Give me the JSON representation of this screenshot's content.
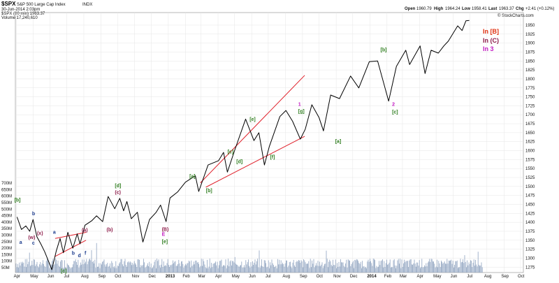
{
  "header": {
    "symbol": "$SPX",
    "name": "S&P 500 Large Cap Index",
    "exchange": "INDX",
    "date": "30-Jun-2014 2:03pm",
    "legend_price": "$SPX (60 min) 1963.37",
    "legend_volume": "Volume 17,240,610",
    "open_label": "Open",
    "open": "1960.79",
    "high_label": "High",
    "high": "1964.24",
    "low_label": "Low",
    "low": "1958.41",
    "last_label": "Last",
    "last": "1963.37",
    "chg_label": "Chg",
    "chg": "+2.41 (+0.12%)",
    "credit": "© StockCharts.com"
  },
  "labels_right": {
    "b_label": "In [B]",
    "b_color": "#e03010",
    "c_label": "In (C)",
    "c_color": "#8e1c4a",
    "three_label": "In 3",
    "three_color": "#c21cc2"
  },
  "chart_data": {
    "type": "line",
    "title": "$SPX (60 min) 1963.37",
    "ylim": [
      1260,
      1985
    ],
    "y_ticks": [
      1275,
      1300,
      1325,
      1350,
      1375,
      1400,
      1425,
      1450,
      1475,
      1500,
      1525,
      1550,
      1575,
      1600,
      1625,
      1650,
      1675,
      1700,
      1725,
      1750,
      1775,
      1800,
      1825,
      1850,
      1875,
      1900,
      1925,
      1950
    ],
    "x_ticks": [
      "Apr",
      "May",
      "Jun",
      "Jul",
      "Aug",
      "Sep",
      "Oct",
      "Nov",
      "Dec",
      "2013",
      "Feb",
      "Mar",
      "Apr",
      "May",
      "Jun",
      "Jul",
      "Aug",
      "Sep",
      "Oct",
      "Nov",
      "Dec",
      "2014",
      "Feb",
      "Mar",
      "Apr",
      "May",
      "Jun",
      "Jul",
      "Aug",
      "Sep",
      "Oct"
    ],
    "volume_ticks": [
      "50M",
      "100M",
      "150M",
      "200M",
      "250M",
      "300M",
      "350M",
      "400M",
      "450M",
      "500M",
      "550M",
      "600M",
      "650M",
      "700M"
    ],
    "series": [
      {
        "values": [
          {
            "x": "2012-04-02",
            "y": 1415
          },
          {
            "x": "2012-04-10",
            "y": 1380
          },
          {
            "x": "2012-04-18",
            "y": 1390
          },
          {
            "x": "2012-04-25",
            "y": 1375
          },
          {
            "x": "2012-05-01",
            "y": 1408
          },
          {
            "x": "2012-05-08",
            "y": 1360
          },
          {
            "x": "2012-05-15",
            "y": 1340
          },
          {
            "x": "2012-05-22",
            "y": 1318
          },
          {
            "x": "2012-06-01",
            "y": 1280
          },
          {
            "x": "2012-06-04",
            "y": 1268
          },
          {
            "x": "2012-06-12",
            "y": 1320
          },
          {
            "x": "2012-06-19",
            "y": 1355
          },
          {
            "x": "2012-06-25",
            "y": 1315
          },
          {
            "x": "2012-07-03",
            "y": 1372
          },
          {
            "x": "2012-07-12",
            "y": 1328
          },
          {
            "x": "2012-07-20",
            "y": 1368
          },
          {
            "x": "2012-07-25",
            "y": 1340
          },
          {
            "x": "2012-08-03",
            "y": 1392
          },
          {
            "x": "2012-08-15",
            "y": 1404
          },
          {
            "x": "2012-08-24",
            "y": 1418
          },
          {
            "x": "2012-09-04",
            "y": 1402
          },
          {
            "x": "2012-09-14",
            "y": 1472
          },
          {
            "x": "2012-09-26",
            "y": 1438
          },
          {
            "x": "2012-10-05",
            "y": 1467
          },
          {
            "x": "2012-10-12",
            "y": 1432
          },
          {
            "x": "2012-10-18",
            "y": 1458
          },
          {
            "x": "2012-10-26",
            "y": 1410
          },
          {
            "x": "2012-11-06",
            "y": 1428
          },
          {
            "x": "2012-11-16",
            "y": 1345
          },
          {
            "x": "2012-11-28",
            "y": 1408
          },
          {
            "x": "2012-12-10",
            "y": 1428
          },
          {
            "x": "2012-12-18",
            "y": 1448
          },
          {
            "x": "2012-12-28",
            "y": 1402
          },
          {
            "x": "2013-01-04",
            "y": 1468
          },
          {
            "x": "2013-01-18",
            "y": 1485
          },
          {
            "x": "2013-02-01",
            "y": 1512
          },
          {
            "x": "2013-02-19",
            "y": 1530
          },
          {
            "x": "2013-02-25",
            "y": 1486
          },
          {
            "x": "2013-03-14",
            "y": 1560
          },
          {
            "x": "2013-04-02",
            "y": 1572
          },
          {
            "x": "2013-04-11",
            "y": 1595
          },
          {
            "x": "2013-04-18",
            "y": 1540
          },
          {
            "x": "2013-05-01",
            "y": 1600
          },
          {
            "x": "2013-05-21",
            "y": 1688
          },
          {
            "x": "2013-06-05",
            "y": 1628
          },
          {
            "x": "2013-06-14",
            "y": 1650
          },
          {
            "x": "2013-06-24",
            "y": 1560
          },
          {
            "x": "2013-07-03",
            "y": 1612
          },
          {
            "x": "2013-07-22",
            "y": 1695
          },
          {
            "x": "2013-08-02",
            "y": 1712
          },
          {
            "x": "2013-08-14",
            "y": 1682
          },
          {
            "x": "2013-08-28",
            "y": 1632
          },
          {
            "x": "2013-09-06",
            "y": 1660
          },
          {
            "x": "2013-09-18",
            "y": 1728
          },
          {
            "x": "2013-10-01",
            "y": 1692
          },
          {
            "x": "2013-10-09",
            "y": 1655
          },
          {
            "x": "2013-10-22",
            "y": 1755
          },
          {
            "x": "2013-11-07",
            "y": 1745
          },
          {
            "x": "2013-11-27",
            "y": 1808
          },
          {
            "x": "2013-12-12",
            "y": 1775
          },
          {
            "x": "2013-12-31",
            "y": 1848
          },
          {
            "x": "2014-01-15",
            "y": 1850
          },
          {
            "x": "2014-02-04",
            "y": 1738
          },
          {
            "x": "2014-02-18",
            "y": 1835
          },
          {
            "x": "2014-03-07",
            "y": 1880
          },
          {
            "x": "2014-03-14",
            "y": 1840
          },
          {
            "x": "2014-04-02",
            "y": 1892
          },
          {
            "x": "2014-04-11",
            "y": 1815
          },
          {
            "x": "2014-04-22",
            "y": 1880
          },
          {
            "x": "2014-05-05",
            "y": 1872
          },
          {
            "x": "2014-05-15",
            "y": 1892
          },
          {
            "x": "2014-05-23",
            "y": 1905
          },
          {
            "x": "2014-06-09",
            "y": 1948
          },
          {
            "x": "2014-06-17",
            "y": 1935
          },
          {
            "x": "2014-06-24",
            "y": 1962
          },
          {
            "x": "2014-06-30",
            "y": 1963
          }
        ]
      }
    ],
    "annotations": [
      {
        "text": "[b]",
        "x": "2012-04-01",
        "y": 1458,
        "color": "#2e7d1e"
      },
      {
        "text": "a",
        "x": "2012-04-10",
        "y": 1340,
        "color": "#1a3a8c"
      },
      {
        "text": "b",
        "x": "2012-05-03",
        "y": 1420,
        "color": "#1a3a8c"
      },
      {
        "text": "c",
        "x": "2012-05-03",
        "y": 1338,
        "color": "#1a3a8c"
      },
      {
        "text": "(x)",
        "x": "2012-05-12",
        "y": 1365,
        "color": "#8e1c4a"
      },
      {
        "text": "(w)",
        "x": "2012-04-26",
        "y": 1354,
        "color": "#8e1c4a"
      },
      {
        "text": "a",
        "x": "2012-06-10",
        "y": 1368,
        "color": "#1a3a8c"
      },
      {
        "text": "b",
        "x": "2012-07-14",
        "y": 1310,
        "color": "#1a3a8c"
      },
      {
        "text": "d",
        "x": "2012-07-25",
        "y": 1303,
        "color": "#1a3a8c"
      },
      {
        "text": "f",
        "x": "2012-08-06",
        "y": 1310,
        "color": "#1a3a8c"
      },
      {
        "text": "(a)",
        "x": "2012-08-01",
        "y": 1374,
        "color": "#8e1c4a"
      },
      {
        "text": "[c]",
        "x": "2012-06-24",
        "y": 1260,
        "color": "#2e7d1e"
      },
      {
        "text": "(b)",
        "x": "2012-09-15",
        "y": 1375,
        "color": "#8e1c4a"
      },
      {
        "text": "[d]",
        "x": "2012-09-30",
        "y": 1498,
        "color": "#2e7d1e"
      },
      {
        "text": "(c)",
        "x": "2012-09-30",
        "y": 1479,
        "color": "#8e1c4a"
      },
      {
        "text": "(B)",
        "x": "2012-12-24",
        "y": 1376,
        "color": "#8e1c4a"
      },
      {
        "text": "E",
        "x": "2012-12-24",
        "y": 1362,
        "color": "#c21cc2"
      },
      {
        "text": "[e]",
        "x": "2012-12-24",
        "y": 1342,
        "color": "#2e7d1e"
      },
      {
        "text": "[a]",
        "x": "2013-02-12",
        "y": 1524,
        "color": "#2e7d1e"
      },
      {
        "text": "[b]",
        "x": "2013-03-14",
        "y": 1484,
        "color": "#2e7d1e"
      },
      {
        "text": "[c]",
        "x": "2013-04-22",
        "y": 1592,
        "color": "#2e7d1e"
      },
      {
        "text": "[d]",
        "x": "2013-05-08",
        "y": 1565,
        "color": "#2e7d1e"
      },
      {
        "text": "[e]",
        "x": "2013-06-01",
        "y": 1683,
        "color": "#2e7d1e"
      },
      {
        "text": "[f]",
        "x": "2013-07-08",
        "y": 1578,
        "color": "#2e7d1e"
      },
      {
        "text": "1",
        "x": "2013-08-28",
        "y": 1725,
        "color": "#c21cc2"
      },
      {
        "text": "[g]",
        "x": "2013-08-28",
        "y": 1705,
        "color": "#2e7d1e"
      },
      {
        "text": "[a]",
        "x": "2013-11-03",
        "y": 1622,
        "color": "#2e7d1e"
      },
      {
        "text": "[b]",
        "x": "2014-01-24",
        "y": 1877,
        "color": "#2e7d1e"
      },
      {
        "text": "2",
        "x": "2014-02-14",
        "y": 1725,
        "color": "#c21cc2"
      },
      {
        "text": "[c]",
        "x": "2014-02-14",
        "y": 1703,
        "color": "#2e7d1e"
      }
    ],
    "grid": true,
    "y_axis_side": "right"
  }
}
